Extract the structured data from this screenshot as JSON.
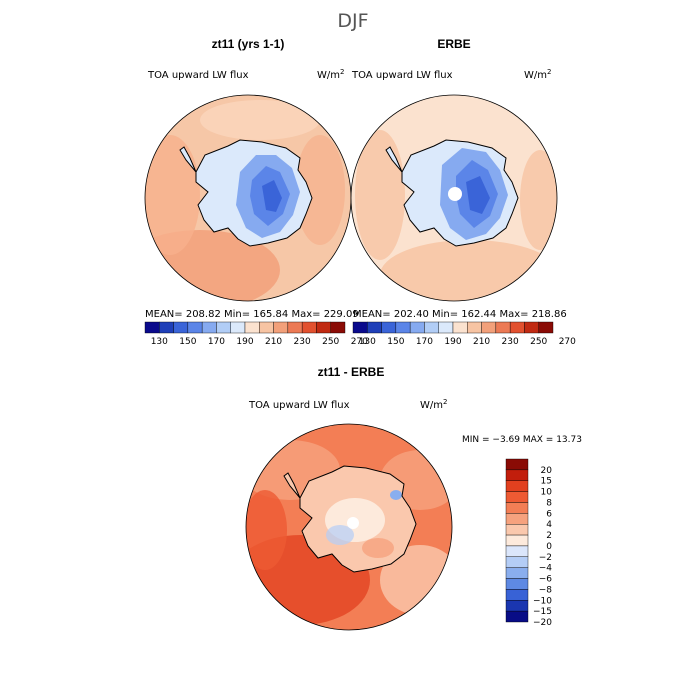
{
  "chart_data": {
    "type": "map",
    "title": "DJF",
    "panels": [
      {
        "id": "model",
        "title": "zt11 (yrs 1-1)",
        "variable": "TOA upward LW flux",
        "units": "W/m",
        "units_exp": "2",
        "stats": {
          "mean": "208.82",
          "min": "165.84",
          "max": "229.09"
        },
        "stats_text": "MEAN= 208.82   Min= 165.84   Max= 229.09"
      },
      {
        "id": "obs",
        "title": "ERBE",
        "variable": "TOA upward LW flux",
        "units": "W/m",
        "units_exp": "2",
        "stats": {
          "mean": "202.40",
          "min": "162.44",
          "max": "218.86"
        },
        "stats_text": "MEAN= 202.40   Min= 162.44   Max= 218.86"
      },
      {
        "id": "diff",
        "title": "zt11 - ERBE",
        "variable": "TOA upward LW flux",
        "units": "W/m",
        "units_exp": "2",
        "stats": {
          "min": "-3.69",
          "max": "13.73"
        },
        "stats_text": "MIN =   −3.69  MAX =   13.73"
      }
    ],
    "field_colorbar": {
      "ticks": [
        "130",
        "150",
        "170",
        "190",
        "210",
        "230",
        "250",
        "270"
      ],
      "colors": [
        "#0a0a8c",
        "#1f3fb8",
        "#3a64d8",
        "#5b85e8",
        "#86aaf0",
        "#b1cdf6",
        "#dbe9fb",
        "#fbe2cf",
        "#f7c4a3",
        "#f2a07a",
        "#ec7a55",
        "#e2512f",
        "#c12a12",
        "#8a0b05"
      ]
    },
    "diff_colorbar": {
      "levels": [
        "20",
        "15",
        "10",
        "8",
        "6",
        "4",
        "2",
        "0",
        "−2",
        "−4",
        "−6",
        "−8",
        "−10",
        "−15",
        "−20"
      ],
      "colors": [
        "#8a0b05",
        "#c21e0c",
        "#e2401f",
        "#ee5a33",
        "#f37e55",
        "#f6a27e",
        "#fac8ad",
        "#fdeadc",
        "#dbe6fb",
        "#b4cdf6",
        "#8aaeee",
        "#5e89e3",
        "#3862d6",
        "#1a36b0",
        "#080c86"
      ]
    }
  }
}
